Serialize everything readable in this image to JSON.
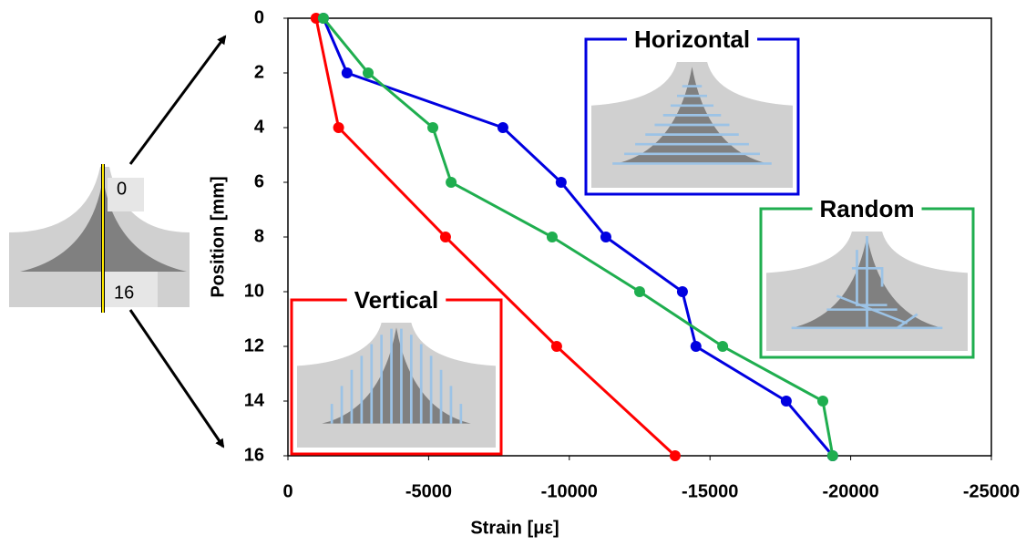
{
  "chart_data": {
    "type": "line",
    "xlabel": "Strain [με]",
    "ylabel": "Position [mm]",
    "xlim": [
      0,
      -25000
    ],
    "xticks": [
      0,
      -5000,
      -10000,
      -15000,
      -20000,
      -25000
    ],
    "ylim": [
      16,
      0
    ],
    "yticks": [
      0,
      2,
      4,
      6,
      8,
      10,
      12,
      14,
      16
    ],
    "annotations": [
      "0",
      "16"
    ],
    "series": [
      {
        "name": "Vertical",
        "color": "#ff0000",
        "x": [
          -1000,
          -1800,
          -5600,
          -9550,
          -13760
        ],
        "values": [
          0,
          4,
          8,
          12,
          16
        ]
      },
      {
        "name": "Horizontal",
        "color": "#0000e0",
        "x": [
          -1260,
          -2100,
          -7640,
          -9710,
          -11300,
          -14020,
          -14500,
          -17710,
          -19360
        ],
        "values": [
          0,
          2,
          4,
          6,
          8,
          10,
          12,
          14,
          16
        ]
      },
      {
        "name": "Random",
        "color": "#1fae4f",
        "x": [
          -1260,
          -2850,
          -5150,
          -5800,
          -9390,
          -12500,
          -15450,
          -19010,
          -19360
        ],
        "values": [
          0,
          2,
          4,
          6,
          8,
          10,
          12,
          14,
          16
        ]
      }
    ]
  }
}
